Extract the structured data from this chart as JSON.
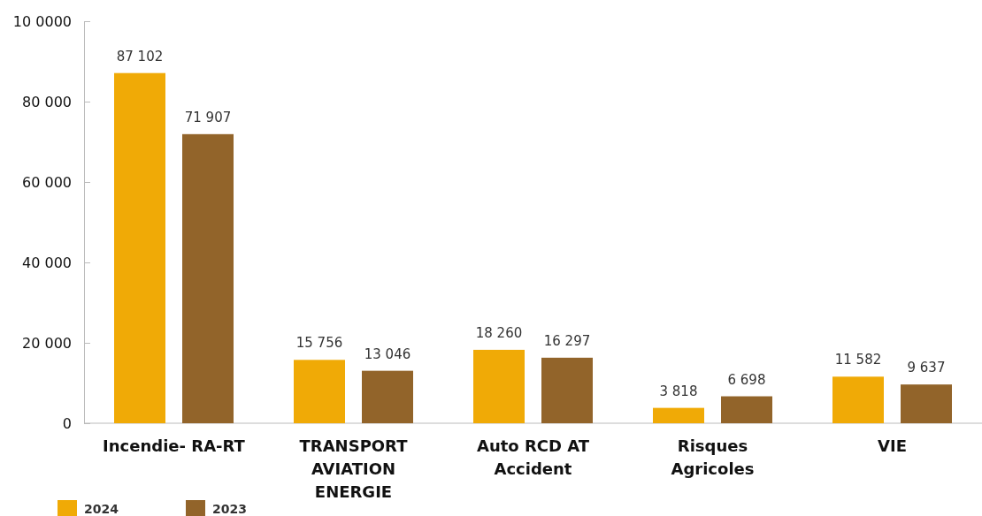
{
  "chart_data": {
    "type": "bar",
    "categories": [
      "Incendie- RA-RT",
      "TRANSPORT\nAVIATION\nENERGIE",
      "Auto RCD AT\nAccident",
      "Risques\nAgricoles",
      "VIE"
    ],
    "series": [
      {
        "name": "2024",
        "color": "#f0aa06",
        "values": [
          87102,
          15756,
          18260,
          3818,
          11582
        ]
      },
      {
        "name": "2023",
        "color": "#92642a",
        "values": [
          71907,
          13046,
          16297,
          6698,
          9637
        ]
      }
    ],
    "ylim": [
      0,
      100000
    ],
    "yticks": [
      0,
      20000,
      40000,
      60000,
      80000,
      {
        "value": 100000,
        "label": "10 0000"
      }
    ],
    "data_labels": true,
    "legend": "bottom left",
    "grid": false
  }
}
